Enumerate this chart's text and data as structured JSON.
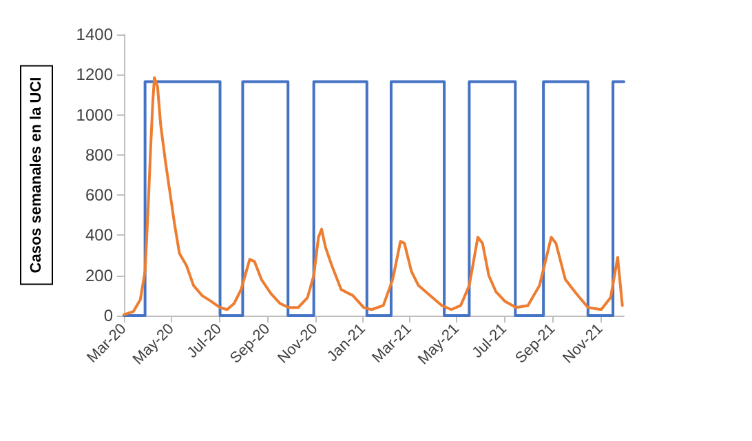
{
  "chart_data": {
    "type": "line",
    "ylabel": "Casos semanales en la UCI",
    "marker": "none",
    "grid": false,
    "xlim": [
      "2020-03-01",
      "2021-12-01"
    ],
    "xticks": [
      {
        "value": "2020-03-01",
        "label": "Mar-20"
      },
      {
        "value": "2020-05-01",
        "label": "May-20"
      },
      {
        "value": "2020-07-01",
        "label": "Jul-20"
      },
      {
        "value": "2020-09-01",
        "label": "Sep-20"
      },
      {
        "value": "2020-11-01",
        "label": "Nov-20"
      },
      {
        "value": "2021-01-01",
        "label": "Jan-21"
      },
      {
        "value": "2021-03-01",
        "label": "Mar-21"
      },
      {
        "value": "2021-05-01",
        "label": "May-21"
      },
      {
        "value": "2021-07-01",
        "label": "Jul-21"
      },
      {
        "value": "2021-09-01",
        "label": "Sep-21"
      },
      {
        "value": "2021-11-01",
        "label": "Nov-21"
      }
    ],
    "ylim": [
      0,
      1400
    ],
    "yticks": [
      0,
      200,
      400,
      600,
      800,
      1000,
      1200,
      1400
    ],
    "series": [
      {
        "color": "#4472c4",
        "x": [
          "2020-03-01",
          "2020-03-28",
          "2020-03-28",
          "2020-07-02",
          "2020-07-02",
          "2020-07-31",
          "2020-07-31",
          "2020-09-27",
          "2020-09-27",
          "2020-10-30",
          "2020-10-30",
          "2021-01-06",
          "2021-01-06",
          "2021-02-06",
          "2021-02-06",
          "2021-04-15",
          "2021-04-15",
          "2021-05-17",
          "2021-05-17",
          "2021-07-15",
          "2021-07-15",
          "2021-08-20",
          "2021-08-20",
          "2021-10-16",
          "2021-10-16",
          "2021-11-17",
          "2021-11-17",
          "2021-12-01"
        ],
        "values": [
          0,
          0,
          1165,
          1165,
          0,
          0,
          1165,
          1165,
          0,
          0,
          1165,
          1165,
          0,
          0,
          1165,
          1165,
          0,
          0,
          1165,
          1165,
          0,
          0,
          1165,
          1165,
          0,
          0,
          1165,
          1165
        ]
      },
      {
        "color": "#ed7d31",
        "x": [
          "2020-03-01",
          "2020-03-13",
          "2020-03-22",
          "2020-03-28",
          "2020-04-01",
          "2020-04-04",
          "2020-04-07",
          "2020-04-09",
          "2020-04-13",
          "2020-04-17",
          "2020-04-23",
          "2020-04-29",
          "2020-05-05",
          "2020-05-11",
          "2020-05-20",
          "2020-05-29",
          "2020-06-09",
          "2020-06-21",
          "2020-07-02",
          "2020-07-11",
          "2020-07-20",
          "2020-07-29",
          "2020-08-09",
          "2020-08-15",
          "2020-08-24",
          "2020-09-05",
          "2020-09-17",
          "2020-09-28",
          "2020-10-10",
          "2020-10-22",
          "2020-10-30",
          "2020-11-05",
          "2020-11-09",
          "2020-11-14",
          "2020-11-22",
          "2020-12-04",
          "2020-12-19",
          "2021-01-02",
          "2021-01-12",
          "2021-01-27",
          "2021-02-08",
          "2021-02-18",
          "2021-02-23",
          "2021-03-04",
          "2021-03-13",
          "2021-03-25",
          "2021-04-12",
          "2021-04-24",
          "2021-05-06",
          "2021-05-17",
          "2021-05-28",
          "2021-06-03",
          "2021-06-11",
          "2021-06-20",
          "2021-07-02",
          "2021-07-16",
          "2021-07-31",
          "2021-08-15",
          "2021-08-30",
          "2021-09-05",
          "2021-09-17",
          "2021-10-01",
          "2021-10-16",
          "2021-11-02",
          "2021-11-14",
          "2021-11-23",
          "2021-11-29"
        ],
        "values": [
          5,
          20,
          80,
          220,
          540,
          820,
          1070,
          1185,
          1140,
          950,
          770,
          610,
          450,
          310,
          250,
          150,
          100,
          70,
          40,
          30,
          60,
          130,
          280,
          270,
          180,
          110,
          60,
          40,
          40,
          90,
          200,
          390,
          430,
          340,
          250,
          130,
          100,
          40,
          30,
          50,
          180,
          370,
          360,
          220,
          150,
          110,
          50,
          30,
          50,
          150,
          390,
          360,
          200,
          120,
          70,
          40,
          50,
          150,
          390,
          360,
          180,
          110,
          40,
          30,
          90,
          290,
          50
        ]
      }
    ]
  }
}
